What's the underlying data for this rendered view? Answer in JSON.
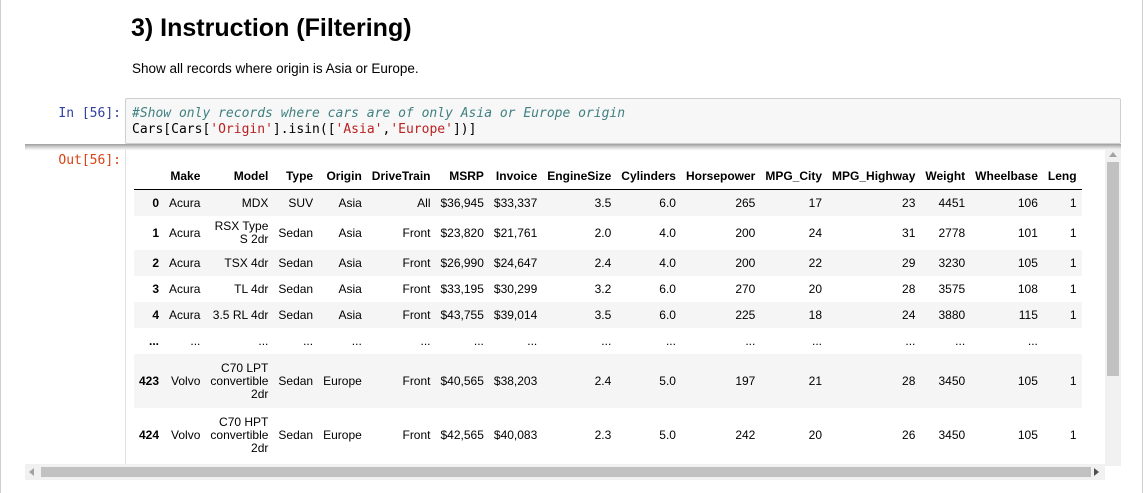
{
  "markdown": {
    "heading": "3) Instruction (Filtering)",
    "text": "Show all records where origin is Asia or Europe."
  },
  "cell": {
    "in_prompt": "In [56]:",
    "out_prompt": "Out[56]:",
    "code_comment": "#Show only records where cars are of only Asia or Europe origin",
    "code_parts": [
      "Cars[Cars[",
      "'Origin'",
      "].isin([",
      "'Asia'",
      ",",
      "'Europe'",
      "])]"
    ]
  },
  "table": {
    "columns": [
      "",
      "Make",
      "Model",
      "Type",
      "Origin",
      "DriveTrain",
      "MSRP",
      "Invoice",
      "EngineSize",
      "Cylinders",
      "Horsepower",
      "MPG_City",
      "MPG_Highway",
      "Weight",
      "Wheelbase",
      "Leng"
    ],
    "rows": [
      [
        "0",
        "Acura",
        "MDX",
        "SUV",
        "Asia",
        "All",
        "$36,945",
        "$33,337",
        "3.5",
        "6.0",
        "265",
        "17",
        "23",
        "4451",
        "106",
        "1"
      ],
      [
        "1",
        "Acura",
        "RSX Type S 2dr",
        "Sedan",
        "Asia",
        "Front",
        "$23,820",
        "$21,761",
        "2.0",
        "4.0",
        "200",
        "24",
        "31",
        "2778",
        "101",
        "1"
      ],
      [
        "2",
        "Acura",
        "TSX 4dr",
        "Sedan",
        "Asia",
        "Front",
        "$26,990",
        "$24,647",
        "2.4",
        "4.0",
        "200",
        "22",
        "29",
        "3230",
        "105",
        "1"
      ],
      [
        "3",
        "Acura",
        "TL 4dr",
        "Sedan",
        "Asia",
        "Front",
        "$33,195",
        "$30,299",
        "3.2",
        "6.0",
        "270",
        "20",
        "28",
        "3575",
        "108",
        "1"
      ],
      [
        "4",
        "Acura",
        "3.5 RL 4dr",
        "Sedan",
        "Asia",
        "Front",
        "$43,755",
        "$39,014",
        "3.5",
        "6.0",
        "225",
        "18",
        "24",
        "3880",
        "115",
        "1"
      ],
      [
        "...",
        "...",
        "...",
        "...",
        "...",
        "...",
        "...",
        "...",
        "...",
        "...",
        "...",
        "...",
        "...",
        "...",
        "...",
        ""
      ],
      [
        "423",
        "Volvo",
        "C70 LPT convertible 2dr",
        "Sedan",
        "Europe",
        "Front",
        "$40,565",
        "$38,203",
        "2.4",
        "5.0",
        "197",
        "21",
        "28",
        "3450",
        "105",
        "1"
      ],
      [
        "424",
        "Volvo",
        "C70 HPT convertible 2dr",
        "Sedan",
        "Europe",
        "Front",
        "$42,565",
        "$40,083",
        "2.3",
        "5.0",
        "242",
        "20",
        "26",
        "3450",
        "105",
        "1"
      ]
    ]
  }
}
